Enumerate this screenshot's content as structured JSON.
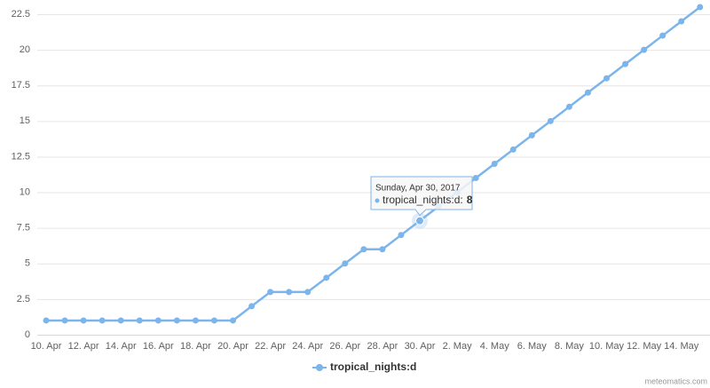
{
  "chart_data": {
    "type": "line",
    "categories": [
      "10. Apr",
      null,
      "12. Apr",
      null,
      "14. Apr",
      null,
      "16. Apr",
      null,
      "18. Apr",
      null,
      "20. Apr",
      null,
      "22. Apr",
      null,
      "24. Apr",
      null,
      "26. Apr",
      null,
      "28. Apr",
      null,
      "30. Apr",
      null,
      "2. May",
      null,
      "4. May",
      null,
      "6. May",
      null,
      "8. May",
      null,
      "10. May",
      null,
      "12. May",
      null,
      "14. May",
      null
    ],
    "series": [
      {
        "name": "tropical_nights:d",
        "color": "#7cb5ec",
        "values": [
          1,
          1,
          1,
          1,
          1,
          1,
          1,
          1,
          1,
          1,
          1,
          2,
          3,
          3,
          3,
          4,
          5,
          6,
          6,
          7,
          8,
          9,
          10,
          11,
          12,
          13,
          14,
          15,
          16,
          17,
          18,
          19,
          20,
          21,
          22,
          23
        ]
      }
    ],
    "ylim": [
      0,
      22.5
    ],
    "yticks": [
      0,
      2.5,
      5,
      7.5,
      10,
      12.5,
      15,
      17.5,
      20,
      22.5
    ],
    "grid": true,
    "legend": "bottom",
    "tooltip": {
      "header": "Sunday, Apr 30, 2017",
      "separator": ":"
    },
    "credit": "meteomatics.com"
  }
}
